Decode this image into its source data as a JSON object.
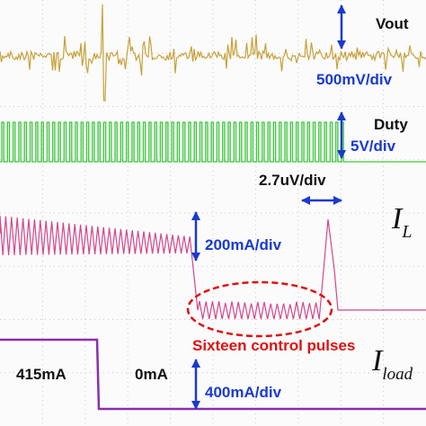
{
  "traces": {
    "vout": {
      "label": "Vout",
      "scale": "500mV/div"
    },
    "duty": {
      "label": "Duty",
      "scale": "5V/div"
    },
    "time_scale": "2.7uV/div",
    "inductor": {
      "symbol": "I",
      "subscript": "L",
      "scale": "200mA/div"
    },
    "load": {
      "symbol": "I",
      "subscript": "load",
      "scale": "400mA/div",
      "before": "415mA",
      "after": "0mA"
    },
    "annotation": "Sixteen control pulses"
  }
}
